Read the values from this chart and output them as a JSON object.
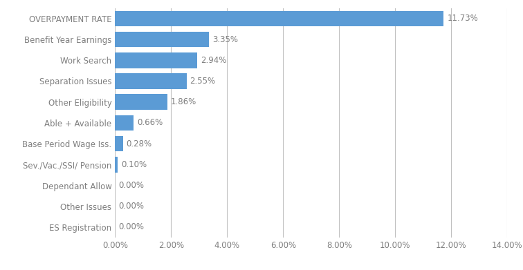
{
  "categories": [
    "ES Registration",
    "Other Issues",
    "Dependant Allow",
    "Sev./Vac./SSI/ Pension",
    "Base Period Wage Iss.",
    "Able + Available",
    "Other Eligibility",
    "Separation Issues",
    "Work Search",
    "Benefit Year Earnings",
    "OVERPAYMENT RATE"
  ],
  "values": [
    0.0,
    0.0,
    0.0,
    0.001,
    0.0028,
    0.0066,
    0.0186,
    0.0255,
    0.0294,
    0.0335,
    0.1173
  ],
  "labels": [
    "0.00%",
    "0.00%",
    "0.00%",
    "0.10%",
    "0.28%",
    "0.66%",
    "1.86%",
    "2.55%",
    "2.94%",
    "3.35%",
    "11.73%"
  ],
  "bar_color": "#5B9BD5",
  "xlim": [
    0,
    0.14
  ],
  "xticks": [
    0.0,
    0.02,
    0.04,
    0.06,
    0.08,
    0.1,
    0.12,
    0.14
  ],
  "xtick_labels": [
    "0.00%",
    "2.00%",
    "4.00%",
    "6.00%",
    "8.00%",
    "10.00%",
    "12.00%",
    "14.00%"
  ],
  "background_color": "#FFFFFF",
  "grid_color": "#BFBFBF",
  "text_color": "#7F7F7F",
  "bar_height": 0.75,
  "label_fontsize": 8.5,
  "tick_fontsize": 8.5,
  "figsize": [
    7.56,
    3.91
  ],
  "dpi": 100
}
